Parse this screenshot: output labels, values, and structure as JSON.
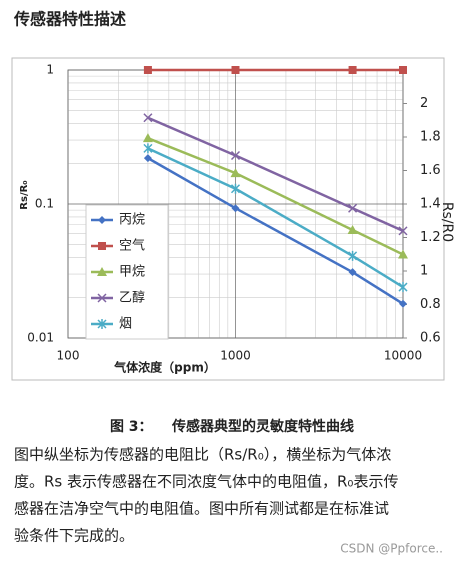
{
  "header": {
    "title": "传感器特性描述"
  },
  "chart_data": {
    "type": "line",
    "x_label": "气体浓度（ppm）",
    "y_label": "Rs/R₀",
    "y2_label": "Rs/R0",
    "x_log": true,
    "y_log": true,
    "grid": true,
    "minor_grid": true,
    "legend": "left",
    "xlim": [
      100,
      10000
    ],
    "xticks": [
      100,
      1000,
      10000
    ],
    "ylim": [
      0.01,
      1
    ],
    "yticks": [
      0.01,
      0.1,
      1
    ],
    "y2lim": [
      0.6,
      2.2
    ],
    "y2ticks": [
      0.6,
      0.8,
      1,
      1.2,
      1.4,
      1.6,
      1.8,
      2
    ],
    "x": [
      300,
      1000,
      5000,
      10000
    ],
    "series": [
      {
        "name": "丙烷",
        "color": "#4472c4",
        "marker": "diamond",
        "values": [
          0.22,
          0.093,
          0.031,
          0.018
        ]
      },
      {
        "name": "空气",
        "color": "#c0504d",
        "marker": "square",
        "values": [
          1,
          1,
          1,
          1
        ]
      },
      {
        "name": "甲烷",
        "color": "#9bbb59",
        "marker": "triangle",
        "values": [
          0.31,
          0.17,
          0.064,
          0.042
        ]
      },
      {
        "name": "乙醇",
        "color": "#8064a2",
        "marker": "x",
        "values": [
          0.44,
          0.23,
          0.093,
          0.063
        ]
      },
      {
        "name": "烟",
        "color": "#4bacc6",
        "marker": "star",
        "values": [
          0.26,
          0.13,
          0.041,
          0.024
        ]
      }
    ]
  },
  "caption": "图 3：    传感器典型的灵敏度特性曲线",
  "paragraph": [
    "图中纵坐标为传感器的电阻比（Rs/R₀），横坐标为气体浓",
    "度。Rs 表示传感器在不同浓度气体中的电阻值，R₀表示传",
    "感器在洁净空气中的电阻值。图中所有测试都是在标准试",
    "验条件下完成的。"
  ],
  "watermark": "CSDN @Ppforce.."
}
